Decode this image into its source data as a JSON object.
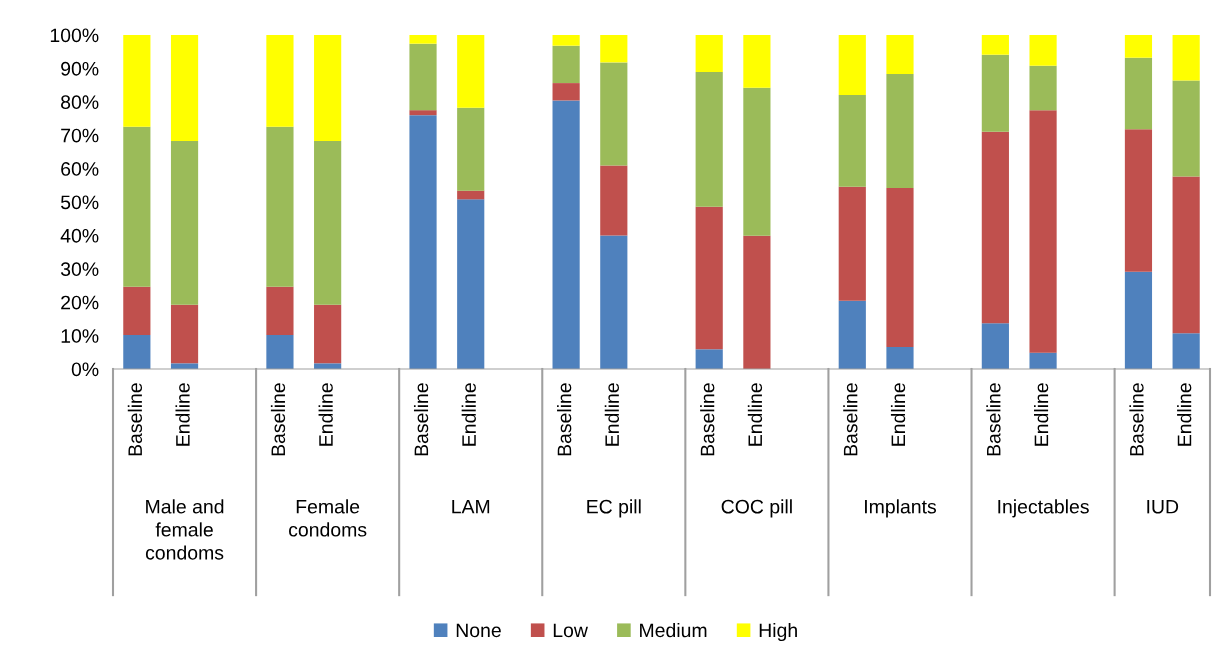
{
  "chart_data": {
    "type": "bar",
    "stacked": true,
    "categories": [
      "Baseline",
      "Endline",
      null,
      "Baseline",
      "Endline",
      null,
      "Baseline",
      "Endline",
      null,
      "Baseline",
      "Endline",
      null,
      "Baseline",
      "Endline",
      null,
      "Baseline",
      "Endline",
      null,
      "Baseline",
      "Endline",
      null,
      "Baseline",
      "Endline"
    ],
    "series": [
      {
        "name": "None",
        "color": "#4f81bd",
        "values": [
          10.2,
          1.7,
          null,
          10.2,
          1.7,
          null,
          76.0,
          50.8,
          null,
          80.4,
          40.0,
          null,
          5.9,
          0,
          null,
          20.4,
          6.6,
          null,
          13.7,
          4.9,
          null,
          29.1,
          10.7
        ]
      },
      {
        "name": "Low",
        "color": "#c0504d",
        "values": [
          14.4,
          17.5,
          null,
          14.4,
          17.5,
          null,
          1.5,
          2.6,
          null,
          5.2,
          20.9,
          null,
          42.7,
          39.9,
          null,
          34.2,
          47.6,
          null,
          57.3,
          72.6,
          null,
          42.7,
          46.9
        ]
      },
      {
        "name": "Medium",
        "color": "#9bbb59",
        "values": [
          47.9,
          49.1,
          null,
          47.9,
          49.1,
          null,
          19.9,
          24.8,
          null,
          11.2,
          30.9,
          null,
          40.3,
          44.3,
          null,
          27.4,
          34.1,
          null,
          23.1,
          13.3,
          null,
          21.4,
          28.8
        ]
      },
      {
        "name": "High",
        "color": "#ffff00",
        "values": [
          27.5,
          31.7,
          null,
          27.5,
          31.7,
          null,
          2.6,
          21.8,
          null,
          3.2,
          8.2,
          null,
          11.1,
          15.8,
          null,
          18.0,
          11.7,
          null,
          5.9,
          9.2,
          null,
          6.8,
          13.6
        ]
      }
    ],
    "ylim": [
      0,
      100
    ],
    "yticks": [
      {
        "value": 0,
        "label": "0%"
      },
      {
        "value": 10,
        "label": "10%"
      },
      {
        "value": 20,
        "label": "20%"
      },
      {
        "value": 30,
        "label": "30%"
      },
      {
        "value": 40,
        "label": "40%"
      },
      {
        "value": 50,
        "label": "50%"
      },
      {
        "value": 60,
        "label": "60%"
      },
      {
        "value": 70,
        "label": "70%"
      },
      {
        "value": 80,
        "label": "80%"
      },
      {
        "value": 90,
        "label": "90%"
      },
      {
        "value": 100,
        "label": "100%"
      }
    ],
    "annotations": [
      "Male and\nfemale\ncondoms",
      "Female\ncondoms",
      "LAM",
      "EC pill",
      "COC pill",
      "Implants",
      "Injectables",
      "IUD"
    ],
    "legend": "bottom",
    "grid": false
  }
}
